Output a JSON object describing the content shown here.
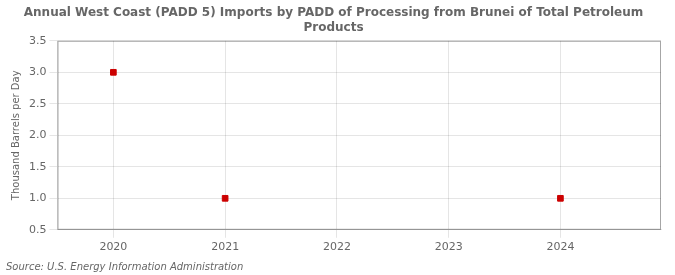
{
  "chart_data": {
    "type": "scatter",
    "title": "Annual West Coast (PADD 5) Imports by PADD of Processing from Brunei of Total Petroleum\nProducts",
    "ylabel": "Thousand Barrels per Day",
    "source": "Source: U.S. Energy Information Administration",
    "x": [
      2020,
      2021,
      2024
    ],
    "values": [
      3.0,
      1.0,
      1.0
    ],
    "color": "#cc0000",
    "marker": "square",
    "xlim": [
      2019.5,
      2024.9
    ],
    "xticks": [
      2020,
      2021,
      2022,
      2023,
      2024
    ],
    "ylim": [
      0.5,
      3.5
    ],
    "yticks": [
      0.5,
      {
        "value": 1.0,
        "label": "1.0"
      },
      1.5,
      {
        "value": 2.0,
        "label": "2.0"
      },
      2.5,
      {
        "value": 3.0,
        "label": "3.0"
      },
      3.5
    ],
    "grid": true
  }
}
